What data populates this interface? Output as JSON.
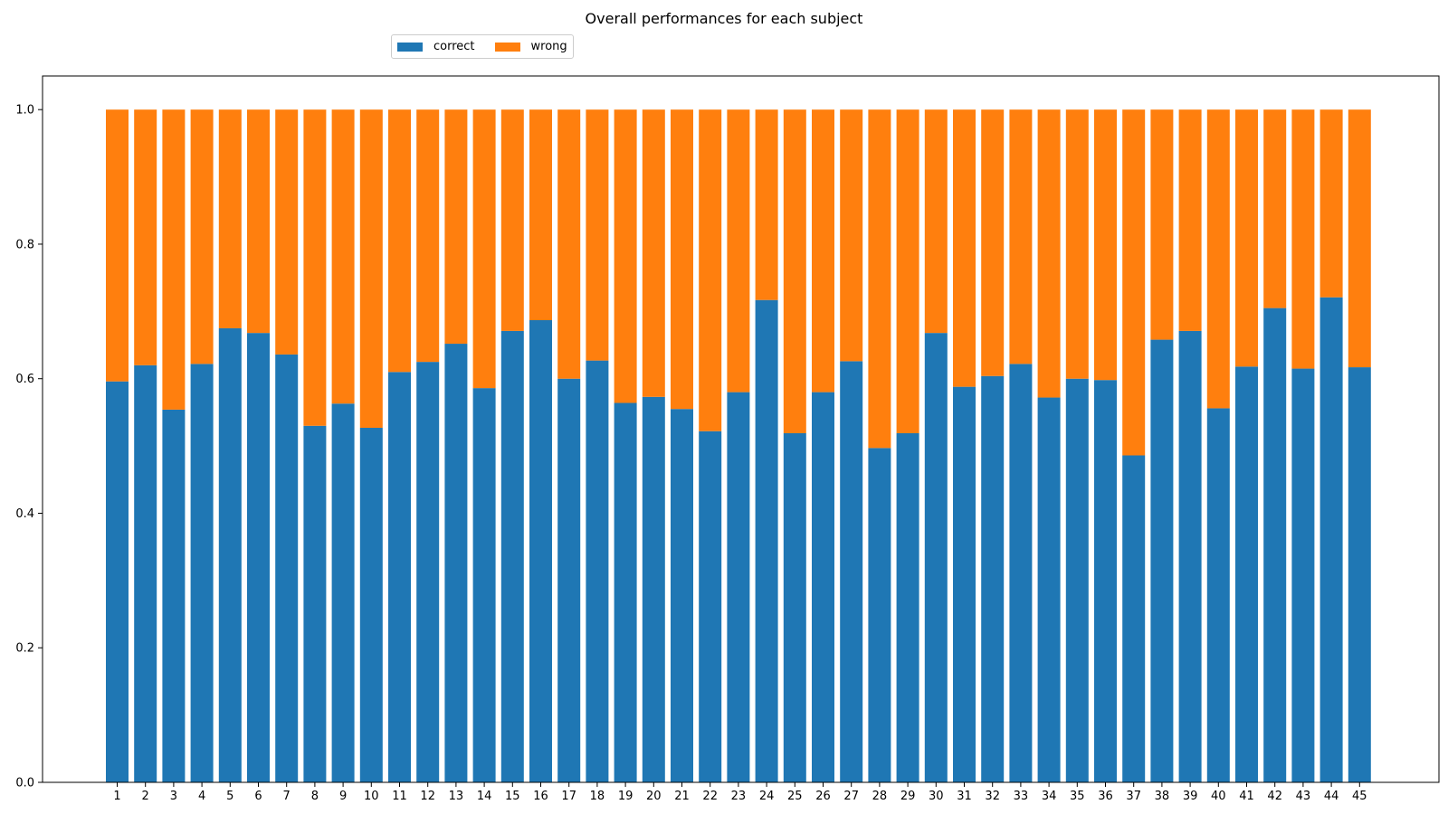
{
  "colors": {
    "correct": "#1f77b4",
    "wrong": "#ff7f0e"
  },
  "chart_data": {
    "type": "bar",
    "stacked": true,
    "title": "Overall performances for each subject",
    "xlabel": "",
    "ylabel": "",
    "ylim": [
      0,
      1.05
    ],
    "yticks": [
      "0.0",
      "0.2",
      "0.4",
      "0.6",
      "0.8",
      "1.0"
    ],
    "legend_position": "top-left",
    "grid": false,
    "categories": [
      "1",
      "2",
      "3",
      "4",
      "5",
      "6",
      "7",
      "8",
      "9",
      "10",
      "11",
      "12",
      "13",
      "14",
      "15",
      "16",
      "17",
      "18",
      "19",
      "20",
      "21",
      "22",
      "23",
      "24",
      "25",
      "26",
      "27",
      "28",
      "29",
      "30",
      "31",
      "32",
      "33",
      "34",
      "35",
      "36",
      "37",
      "38",
      "39",
      "40",
      "41",
      "42",
      "43",
      "44",
      "45"
    ],
    "series": [
      {
        "name": "correct",
        "values": [
          0.596,
          0.62,
          0.554,
          0.622,
          0.675,
          0.668,
          0.636,
          0.53,
          0.563,
          0.527,
          0.61,
          0.625,
          0.652,
          0.586,
          0.671,
          0.687,
          0.6,
          0.627,
          0.564,
          0.573,
          0.555,
          0.522,
          0.58,
          0.717,
          0.519,
          0.58,
          0.626,
          0.497,
          0.519,
          0.668,
          0.588,
          0.604,
          0.622,
          0.572,
          0.6,
          0.598,
          0.486,
          0.658,
          0.671,
          0.556,
          0.618,
          0.705,
          0.615,
          0.721,
          0.617
        ]
      },
      {
        "name": "wrong",
        "values": [
          0.404,
          0.38,
          0.446,
          0.378,
          0.325,
          0.332,
          0.364,
          0.47,
          0.437,
          0.473,
          0.39,
          0.375,
          0.348,
          0.414,
          0.329,
          0.313,
          0.4,
          0.373,
          0.436,
          0.427,
          0.445,
          0.478,
          0.42,
          0.283,
          0.481,
          0.42,
          0.374,
          0.503,
          0.481,
          0.332,
          0.412,
          0.396,
          0.378,
          0.428,
          0.4,
          0.402,
          0.514,
          0.342,
          0.329,
          0.444,
          0.382,
          0.295,
          0.385,
          0.279,
          0.383
        ]
      }
    ]
  }
}
